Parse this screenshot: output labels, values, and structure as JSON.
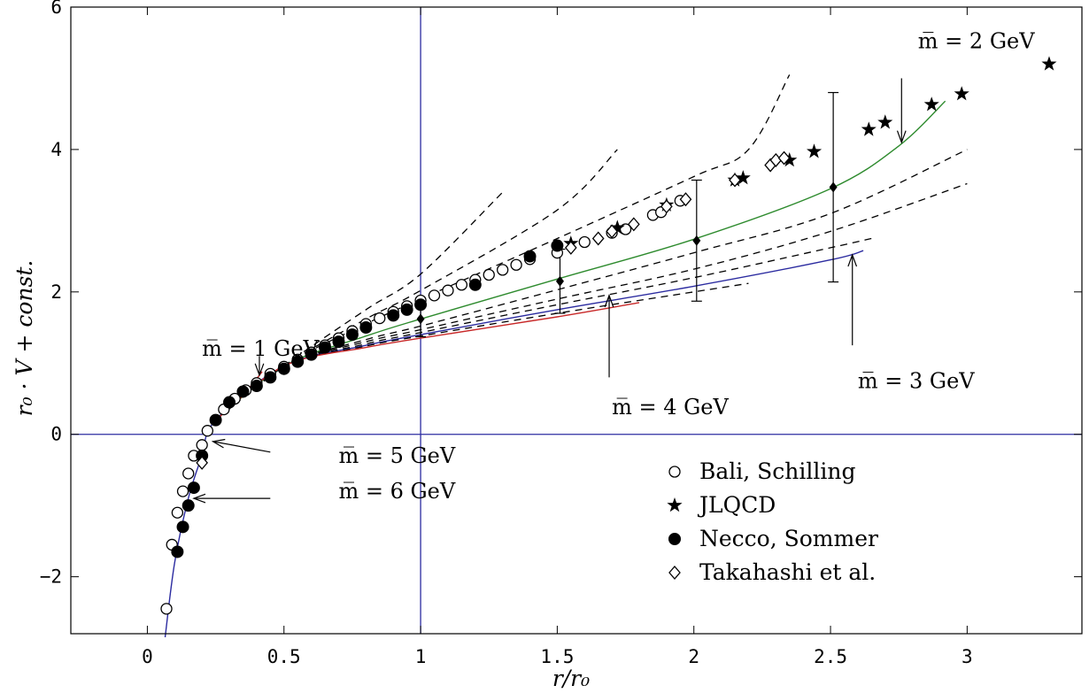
{
  "chart_data": {
    "type": "scatter",
    "xlabel": "r/r₀",
    "ylabel": "r₀ · V + const.",
    "xlim": [
      -0.28,
      3.42
    ],
    "ylim": [
      -2.8,
      6.0
    ],
    "x_ticks": [
      0,
      0.5,
      1,
      1.5,
      2,
      2.5,
      3
    ],
    "x_tick_labels": [
      "0",
      "0.5",
      "1",
      "1.5",
      "2",
      "2.5",
      "3"
    ],
    "y_ticks": [
      -2,
      0,
      2,
      4,
      6
    ],
    "y_tick_labels": [
      "−2",
      "0",
      "2",
      "4",
      "6"
    ],
    "grid": false,
    "reference_lines": {
      "vertical_x": 1,
      "horizontal_y": 0,
      "color": "#2b2ba0"
    },
    "legend": {
      "placement": "bottom-right",
      "entries": [
        {
          "label": "Bali, Schilling",
          "marker": "open-circle-icon"
        },
        {
          "label": "JLQCD",
          "marker": "star-icon"
        },
        {
          "label": "Necco, Sommer",
          "marker": "filled-circle-icon"
        },
        {
          "label": "Takahashi et al.",
          "marker": "open-diamond-icon"
        }
      ]
    },
    "series": [
      {
        "name": "Bali, Schilling",
        "marker": "open-circle",
        "points": [
          [
            0.07,
            -2.45
          ],
          [
            0.09,
            -1.55
          ],
          [
            0.11,
            -1.1
          ],
          [
            0.13,
            -0.8
          ],
          [
            0.15,
            -0.55
          ],
          [
            0.17,
            -0.3
          ],
          [
            0.2,
            -0.15
          ],
          [
            0.22,
            0.05
          ],
          [
            0.25,
            0.2
          ],
          [
            0.28,
            0.35
          ],
          [
            0.32,
            0.5
          ],
          [
            0.36,
            0.62
          ],
          [
            0.4,
            0.72
          ],
          [
            0.45,
            0.85
          ],
          [
            0.5,
            0.95
          ],
          [
            0.55,
            1.05
          ],
          [
            0.6,
            1.15
          ],
          [
            0.65,
            1.25
          ],
          [
            0.7,
            1.35
          ],
          [
            0.75,
            1.45
          ],
          [
            0.8,
            1.55
          ],
          [
            0.85,
            1.63
          ],
          [
            0.9,
            1.72
          ],
          [
            0.95,
            1.8
          ],
          [
            1.0,
            1.88
          ],
          [
            1.05,
            1.95
          ],
          [
            1.1,
            2.02
          ],
          [
            1.15,
            2.1
          ],
          [
            1.2,
            2.17
          ],
          [
            1.25,
            2.24
          ],
          [
            1.3,
            2.31
          ],
          [
            1.35,
            2.38
          ],
          [
            1.4,
            2.46
          ],
          [
            1.5,
            2.55
          ],
          [
            1.6,
            2.7
          ],
          [
            1.7,
            2.83
          ],
          [
            1.75,
            2.88
          ],
          [
            1.85,
            3.08
          ],
          [
            1.88,
            3.12
          ],
          [
            1.95,
            3.28
          ]
        ]
      },
      {
        "name": "JLQCD",
        "marker": "star",
        "points": [
          [
            1.55,
            2.68
          ],
          [
            1.72,
            2.9
          ],
          [
            1.9,
            3.22
          ],
          [
            2.15,
            3.57
          ],
          [
            2.18,
            3.6
          ],
          [
            2.35,
            3.85
          ],
          [
            2.44,
            3.97
          ],
          [
            2.64,
            4.28
          ],
          [
            2.7,
            4.38
          ],
          [
            2.87,
            4.63
          ],
          [
            2.98,
            4.78
          ],
          [
            3.3,
            5.2
          ]
        ]
      },
      {
        "name": "Necco, Sommer",
        "marker": "filled-circle",
        "points": [
          [
            0.11,
            -1.65
          ],
          [
            0.13,
            -1.3
          ],
          [
            0.15,
            -1.0
          ],
          [
            0.17,
            -0.75
          ],
          [
            0.2,
            -0.3
          ],
          [
            0.25,
            0.2
          ],
          [
            0.3,
            0.45
          ],
          [
            0.35,
            0.6
          ],
          [
            0.4,
            0.68
          ],
          [
            0.45,
            0.8
          ],
          [
            0.5,
            0.92
          ],
          [
            0.55,
            1.02
          ],
          [
            0.6,
            1.12
          ],
          [
            0.65,
            1.22
          ],
          [
            0.7,
            1.3
          ],
          [
            0.75,
            1.4
          ],
          [
            0.8,
            1.5
          ],
          [
            0.9,
            1.67
          ],
          [
            0.95,
            1.75
          ],
          [
            1.0,
            1.82
          ],
          [
            1.2,
            2.1
          ],
          [
            1.4,
            2.5
          ],
          [
            1.5,
            2.65
          ]
        ]
      },
      {
        "name": "Takahashi et al.",
        "marker": "open-diamond",
        "points": [
          [
            0.2,
            -0.4
          ],
          [
            1.55,
            2.62
          ],
          [
            1.65,
            2.75
          ],
          [
            1.7,
            2.85
          ],
          [
            1.78,
            2.95
          ],
          [
            1.9,
            3.2
          ],
          [
            1.97,
            3.3
          ],
          [
            2.15,
            3.57
          ],
          [
            2.28,
            3.78
          ],
          [
            2.3,
            3.85
          ],
          [
            2.33,
            3.88
          ]
        ]
      },
      {
        "name": "",
        "marker": "filled-diamond-errorbar",
        "points": [
          [
            1.0,
            1.62,
            0.25
          ],
          [
            1.51,
            2.15,
            0.45
          ],
          [
            2.01,
            2.72,
            0.85
          ],
          [
            2.51,
            3.47,
            1.33
          ]
        ]
      }
    ],
    "curves": [
      {
        "style": "dashed",
        "color": "#000000",
        "points": [
          [
            0.25,
            0.2
          ],
          [
            0.5,
            0.96
          ],
          [
            0.8,
            1.75
          ],
          [
            1.0,
            2.25
          ],
          [
            1.3,
            3.4
          ]
        ]
      },
      {
        "style": "dashed",
        "color": "#000000",
        "points": [
          [
            0.25,
            0.2
          ],
          [
            0.5,
            0.96
          ],
          [
            0.8,
            1.62
          ],
          [
            1.0,
            2.02
          ],
          [
            1.5,
            3.15
          ],
          [
            1.72,
            4.0
          ]
        ]
      },
      {
        "style": "dashed",
        "color": "#000000",
        "points": [
          [
            0.25,
            0.2
          ],
          [
            0.5,
            0.96
          ],
          [
            0.8,
            1.55
          ],
          [
            1.0,
            1.9
          ],
          [
            1.5,
            2.75
          ],
          [
            2.0,
            3.62
          ],
          [
            2.2,
            4.0
          ],
          [
            2.35,
            5.05
          ]
        ]
      },
      {
        "style": "solid",
        "color": "#2e8b2e",
        "points": [
          [
            0.25,
            0.2
          ],
          [
            0.5,
            0.96
          ],
          [
            0.8,
            1.38
          ],
          [
            1.0,
            1.62
          ],
          [
            1.5,
            2.18
          ],
          [
            2.0,
            2.74
          ],
          [
            2.5,
            3.45
          ],
          [
            2.75,
            4.05
          ],
          [
            2.92,
            4.68
          ]
        ]
      },
      {
        "style": "dashed",
        "color": "#000000",
        "points": [
          [
            0.25,
            0.2
          ],
          [
            0.5,
            0.96
          ],
          [
            0.8,
            1.33
          ],
          [
            1.0,
            1.52
          ],
          [
            1.5,
            2.03
          ],
          [
            2.0,
            2.55
          ],
          [
            2.5,
            3.1
          ],
          [
            3.0,
            4.0
          ]
        ]
      },
      {
        "style": "dashed",
        "color": "#000000",
        "points": [
          [
            0.25,
            0.2
          ],
          [
            0.5,
            0.96
          ],
          [
            0.8,
            1.3
          ],
          [
            1.0,
            1.47
          ],
          [
            1.5,
            1.9
          ],
          [
            2.0,
            2.32
          ],
          [
            2.5,
            2.85
          ],
          [
            3.0,
            3.52
          ]
        ]
      },
      {
        "style": "dashed",
        "color": "#000000",
        "points": [
          [
            0.25,
            0.2
          ],
          [
            0.5,
            0.96
          ],
          [
            0.8,
            1.27
          ],
          [
            1.0,
            1.43
          ],
          [
            1.5,
            1.82
          ],
          [
            2.0,
            2.2
          ],
          [
            2.5,
            2.62
          ],
          [
            2.65,
            2.75
          ]
        ]
      },
      {
        "style": "solid",
        "color": "#2b2ba0",
        "points": [
          [
            0.065,
            -2.85
          ],
          [
            0.1,
            -1.8
          ],
          [
            0.15,
            -0.9
          ],
          [
            0.2,
            -0.3
          ],
          [
            0.25,
            0.2
          ],
          [
            0.5,
            0.96
          ],
          [
            0.8,
            1.25
          ],
          [
            1.0,
            1.4
          ],
          [
            1.5,
            1.75
          ],
          [
            2.0,
            2.08
          ],
          [
            2.5,
            2.45
          ],
          [
            2.62,
            2.58
          ]
        ]
      },
      {
        "style": "dashed",
        "color": "#000000",
        "points": [
          [
            0.25,
            0.2
          ],
          [
            0.5,
            0.96
          ],
          [
            0.8,
            1.24
          ],
          [
            1.0,
            1.38
          ],
          [
            1.5,
            1.7
          ],
          [
            2.0,
            2.0
          ],
          [
            2.2,
            2.12
          ]
        ]
      },
      {
        "style": "solid",
        "color": "#c82828",
        "points": [
          [
            0.25,
            0.2
          ],
          [
            0.5,
            0.96
          ],
          [
            0.8,
            1.22
          ],
          [
            1.0,
            1.35
          ],
          [
            1.5,
            1.65
          ],
          [
            1.8,
            1.85
          ]
        ]
      },
      {
        "style": "solid",
        "color": "#c82828",
        "points": [
          [
            0.25,
            0.2
          ],
          [
            0.35,
            0.55
          ],
          [
            0.42,
            0.88
          ]
        ]
      }
    ],
    "annotations": [
      {
        "text": "m̅ = 1 GeV",
        "label_at": [
          0.2,
          1.1
        ],
        "arrow_from": [
          0.41,
          1.1
        ],
        "arrow_to": [
          0.41,
          0.83
        ]
      },
      {
        "text": "m̅ = 2 GeV",
        "label_at": [
          2.82,
          5.42
        ],
        "arrow_from": [
          2.76,
          5.0
        ],
        "arrow_to": [
          2.76,
          4.1
        ]
      },
      {
        "text": "m̅ = 3 GeV",
        "label_at": [
          2.6,
          0.65
        ],
        "arrow_from": [
          2.58,
          1.25
        ],
        "arrow_to": [
          2.58,
          2.52
        ]
      },
      {
        "text": "m̅ = 4 GeV",
        "label_at": [
          1.7,
          0.28
        ],
        "arrow_from": [
          1.69,
          0.8
        ],
        "arrow_to": [
          1.69,
          1.95
        ]
      },
      {
        "text": "m̅ = 5 GeV",
        "label_at": [
          0.7,
          -0.4
        ],
        "arrow_from": [
          0.45,
          -0.25
        ],
        "arrow_to": [
          0.24,
          -0.1
        ]
      },
      {
        "text": "m̅ = 6 GeV",
        "label_at": [
          0.7,
          -0.9
        ],
        "arrow_from": [
          0.45,
          -0.9
        ],
        "arrow_to": [
          0.17,
          -0.9
        ]
      }
    ]
  }
}
